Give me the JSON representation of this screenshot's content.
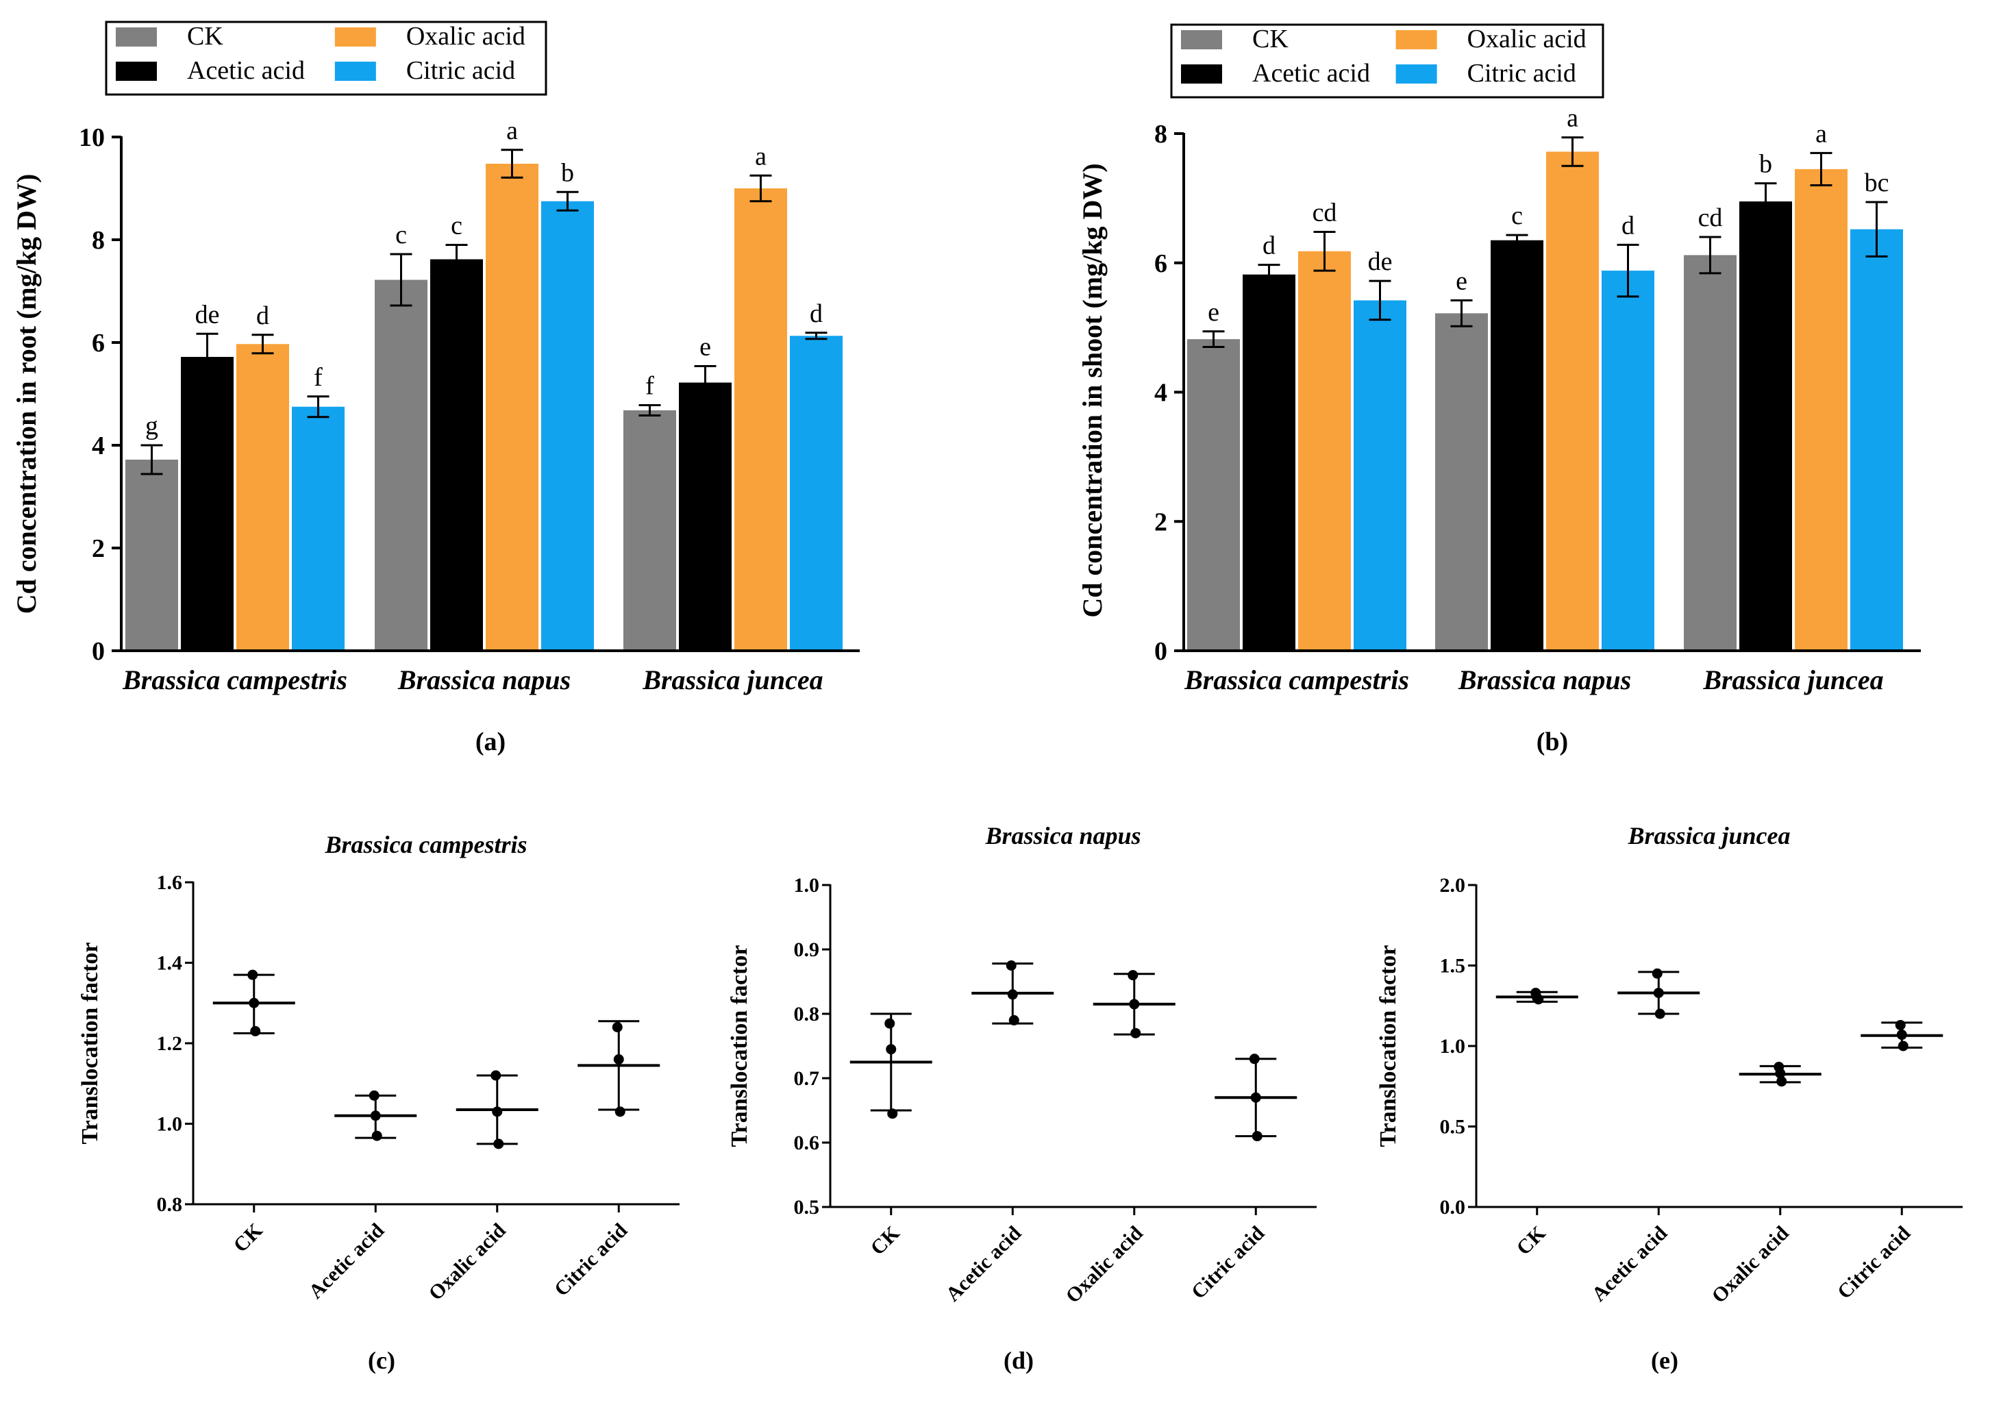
{
  "legend": {
    "items": [
      {
        "key": "CK",
        "label": "CK"
      },
      {
        "key": "acetic",
        "label": "Acetic acid"
      },
      {
        "key": "oxalic",
        "label": "Oxalic acid"
      },
      {
        "key": "citric",
        "label": "Citric acid"
      }
    ]
  },
  "colors": {
    "CK": "#808080",
    "acetic": "#000000",
    "oxalic": "#F9A23B",
    "citric": "#12A3EF"
  },
  "chart_data": [
    {
      "id": "a",
      "type": "bar",
      "panel_label": "(a)",
      "ylabel": "Cd concentration in root (mg/kg DW)",
      "categories": [
        "Brassica campestris",
        "Brassica napus",
        "Brassica juncea"
      ],
      "ylim": [
        0,
        10
      ],
      "yticks": [
        "0",
        "2",
        "4",
        "6",
        "8",
        "10"
      ],
      "series": [
        {
          "name": "CK",
          "key": "CK",
          "values": [
            3.72,
            7.22,
            4.68
          ],
          "errors": [
            0.28,
            0.5,
            0.1
          ],
          "letters": [
            "g",
            "c",
            "f"
          ]
        },
        {
          "name": "Acetic acid",
          "key": "acetic",
          "values": [
            5.72,
            7.62,
            5.22
          ],
          "errors": [
            0.45,
            0.28,
            0.32
          ],
          "letters": [
            "de",
            "c",
            "e"
          ]
        },
        {
          "name": "Oxalic acid",
          "key": "oxalic",
          "values": [
            5.97,
            9.48,
            9.0
          ],
          "errors": [
            0.18,
            0.27,
            0.25
          ],
          "letters": [
            "d",
            "a",
            "a"
          ]
        },
        {
          "name": "Citric acid",
          "key": "citric",
          "values": [
            4.75,
            8.75,
            6.13
          ],
          "errors": [
            0.2,
            0.18,
            0.06
          ],
          "letters": [
            "f",
            "b",
            "d"
          ]
        }
      ]
    },
    {
      "id": "b",
      "type": "bar",
      "panel_label": "(b)",
      "ylabel": "Cd concentration in shoot (mg/kg DW)",
      "categories": [
        "Brassica campestris",
        "Brassica napus",
        "Brassica juncea"
      ],
      "ylim": [
        0,
        8
      ],
      "yticks": [
        "0",
        "2",
        "4",
        "6",
        "8"
      ],
      "series": [
        {
          "name": "CK",
          "key": "CK",
          "values": [
            4.82,
            5.22,
            6.12
          ],
          "errors": [
            0.12,
            0.2,
            0.28
          ],
          "letters": [
            "e",
            "e",
            "cd"
          ]
        },
        {
          "name": "Acetic acid",
          "key": "acetic",
          "values": [
            5.82,
            6.35,
            6.95
          ],
          "errors": [
            0.15,
            0.08,
            0.28
          ],
          "letters": [
            "d",
            "c",
            "b"
          ]
        },
        {
          "name": "Oxalic acid",
          "key": "oxalic",
          "values": [
            6.18,
            7.72,
            7.45
          ],
          "errors": [
            0.3,
            0.22,
            0.25
          ],
          "letters": [
            "cd",
            "a",
            "a"
          ]
        },
        {
          "name": "Citric acid",
          "key": "citric",
          "values": [
            5.42,
            5.88,
            6.52
          ],
          "errors": [
            0.3,
            0.4,
            0.42
          ],
          "letters": [
            "de",
            "d",
            "bc"
          ]
        }
      ]
    },
    {
      "id": "c",
      "type": "scatter",
      "title": "Brassica campestris",
      "panel_label": "(c)",
      "ylabel": "Translocation factor",
      "categories": [
        "CK",
        "Acetic acid",
        "Oxalic acid",
        "Citric acid"
      ],
      "ylim": [
        0.8,
        1.6
      ],
      "yticks": [
        "0.8",
        "1.0",
        "1.2",
        "1.4",
        "1.6"
      ],
      "points": [
        [
          1.37,
          1.3,
          1.23
        ],
        [
          1.07,
          1.02,
          0.97
        ],
        [
          1.12,
          1.03,
          0.95
        ],
        [
          1.24,
          1.16,
          1.03
        ]
      ],
      "mean": [
        1.3,
        1.02,
        1.035,
        1.145
      ],
      "range": [
        [
          1.225,
          1.37
        ],
        [
          0.965,
          1.07
        ],
        [
          0.95,
          1.12
        ],
        [
          1.035,
          1.255
        ]
      ]
    },
    {
      "id": "d",
      "type": "scatter",
      "title": "Brassica napus",
      "panel_label": "(d)",
      "ylabel": "Translocation factor",
      "categories": [
        "CK",
        "Acetic acid",
        "Oxalic acid",
        "Citric acid"
      ],
      "ylim": [
        0.5,
        1.0
      ],
      "yticks": [
        "0.5",
        "0.6",
        "0.7",
        "0.8",
        "0.9",
        "1.0"
      ],
      "points": [
        [
          0.785,
          0.745,
          0.645
        ],
        [
          0.875,
          0.83,
          0.79
        ],
        [
          0.86,
          0.815,
          0.77
        ],
        [
          0.73,
          0.67,
          0.61
        ]
      ],
      "mean": [
        0.725,
        0.832,
        0.815,
        0.67
      ],
      "range": [
        [
          0.65,
          0.8
        ],
        [
          0.785,
          0.878
        ],
        [
          0.768,
          0.862
        ],
        [
          0.61,
          0.73
        ]
      ]
    },
    {
      "id": "e",
      "type": "scatter",
      "title": "Brassica juncea",
      "panel_label": "(e)",
      "ylabel": "Translocation factor",
      "categories": [
        "CK",
        "Acetic acid",
        "Oxalic acid",
        "Citric acid"
      ],
      "ylim": [
        0.0,
        2.0
      ],
      "yticks": [
        "0.0",
        "0.5",
        "1.0",
        "1.5",
        "2.0"
      ],
      "points": [
        [
          1.33,
          1.3,
          1.29
        ],
        [
          1.45,
          1.33,
          1.2
        ],
        [
          0.87,
          0.83,
          0.78
        ],
        [
          1.13,
          1.07,
          1.0
        ]
      ],
      "mean": [
        1.305,
        1.33,
        0.825,
        1.065
      ],
      "range": [
        [
          1.275,
          1.335
        ],
        [
          1.2,
          1.46
        ],
        [
          0.775,
          0.875
        ],
        [
          0.99,
          1.145
        ]
      ]
    }
  ]
}
